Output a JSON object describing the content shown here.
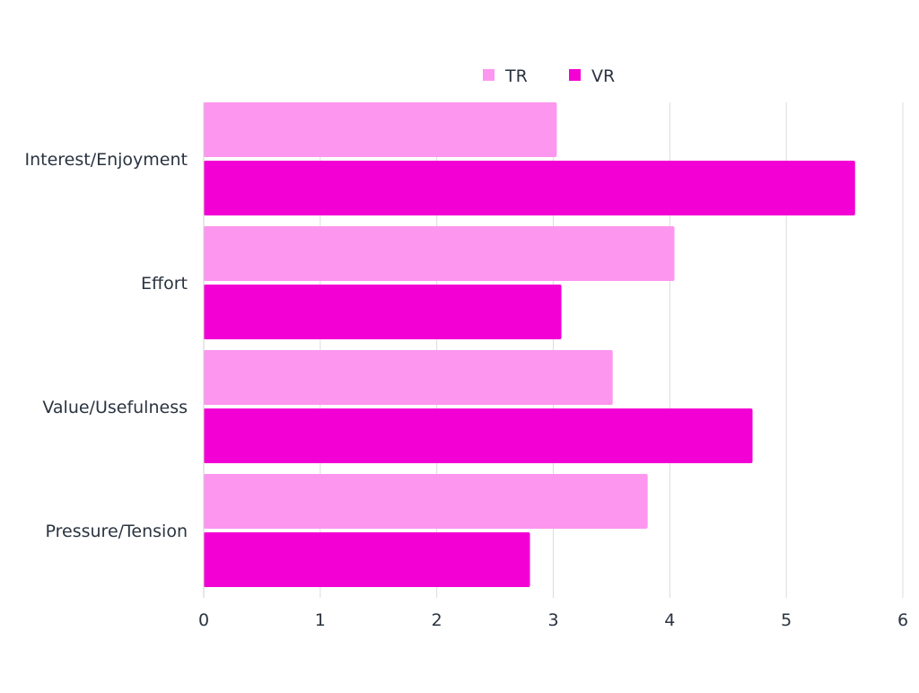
{
  "chart_data": {
    "type": "bar",
    "orientation": "horizontal",
    "categories": [
      "Interest/Enjoyment",
      "Effort",
      "Value/Usefulness",
      "Pressure/Tension"
    ],
    "series": [
      {
        "name": "TR",
        "values": [
          3.03,
          4.04,
          3.51,
          3.81
        ],
        "color": "#fd96ef"
      },
      {
        "name": "VR",
        "values": [
          5.59,
          3.07,
          4.71,
          2.8
        ],
        "color": "#f301d4"
      }
    ],
    "xlim": [
      0,
      6
    ],
    "xticks": [
      "0",
      "1",
      "2",
      "3",
      "4",
      "5",
      "6"
    ],
    "grid": true,
    "legend_position": "top-center",
    "title": "",
    "xlabel": "",
    "ylabel": ""
  }
}
